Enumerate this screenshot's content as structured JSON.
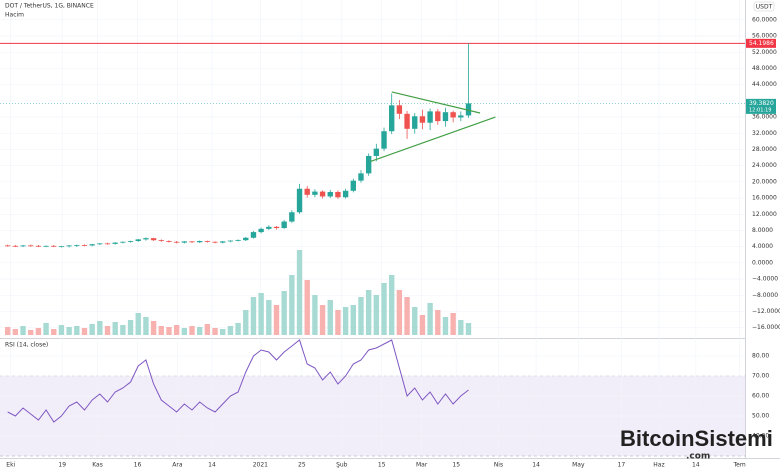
{
  "chart_data": {
    "type": "candlestick",
    "title": "DOT / TetherUS, 1G, BINANCE",
    "volume_label": "Hacim",
    "rsi_label": "RSI (14, close)",
    "currency": "USDT",
    "watermark": "BitcoinSistemi",
    "watermark_suffix": ".com",
    "up_color": "#26a69a",
    "down_color": "#ef5350",
    "vol_up_color": "#a6dad3",
    "vol_down_color": "#f7b2b0",
    "open": [
      4.3,
      4.2,
      4.1,
      4.3,
      4.2,
      4.1,
      4.2,
      4.0,
      4.1,
      4.3,
      4.4,
      4.3,
      4.6,
      4.8,
      4.7,
      5.0,
      5.2,
      5.4,
      5.8,
      6.1,
      5.6,
      5.4,
      5.2,
      5.0,
      5.3,
      5.1,
      5.4,
      5.2,
      5.0,
      5.3,
      5.5,
      5.6,
      6.2,
      7.6,
      8.4,
      8.9,
      8.6,
      10.2,
      12.5,
      18.3,
      16.8,
      17.6,
      16.4,
      17.5,
      16.2,
      17.8,
      20.3,
      22.1,
      26.4,
      28.2,
      32.5,
      38.9,
      36.8,
      33.1,
      36.2,
      34.6,
      37.4,
      35.0,
      37.2,
      35.9,
      36.4
    ],
    "high": [
      4.5,
      4.4,
      4.4,
      4.5,
      4.4,
      4.3,
      4.4,
      4.2,
      4.4,
      4.5,
      4.6,
      4.7,
      4.9,
      5.0,
      5.1,
      5.3,
      5.5,
      5.9,
      6.3,
      6.2,
      5.8,
      5.6,
      5.4,
      5.4,
      5.4,
      5.5,
      5.5,
      5.3,
      5.4,
      5.6,
      5.8,
      6.4,
      7.9,
      8.7,
      9.3,
      9.1,
      10.6,
      13.0,
      19.5,
      19.0,
      18.2,
      17.9,
      18.0,
      17.9,
      18.3,
      20.8,
      22.9,
      27.0,
      29.4,
      33.4,
      41.8,
      40.2,
      37.5,
      37.0,
      37.8,
      38.1,
      38.0,
      38.3,
      37.6,
      37.4,
      54.2
    ],
    "low": [
      4.0,
      3.9,
      3.9,
      4.0,
      3.9,
      3.9,
      3.9,
      3.8,
      3.8,
      3.9,
      4.1,
      4.1,
      4.4,
      4.5,
      4.5,
      4.8,
      5.0,
      5.2,
      5.5,
      5.4,
      5.2,
      5.0,
      4.8,
      4.8,
      4.9,
      4.9,
      5.0,
      4.8,
      4.8,
      5.1,
      5.3,
      5.4,
      6.0,
      7.3,
      8.1,
      8.2,
      8.4,
      9.9,
      12.1,
      16.1,
      16.2,
      15.9,
      16.0,
      15.8,
      15.9,
      17.4,
      19.8,
      21.5,
      25.1,
      27.6,
      31.8,
      35.5,
      30.6,
      31.9,
      33.0,
      32.8,
      34.1,
      33.6,
      34.7,
      35.0,
      35.8
    ],
    "close": [
      4.2,
      4.1,
      4.3,
      4.2,
      4.1,
      4.2,
      4.0,
      4.1,
      4.3,
      4.4,
      4.3,
      4.6,
      4.8,
      4.7,
      5.0,
      5.2,
      5.4,
      5.8,
      6.1,
      5.6,
      5.4,
      5.2,
      5.0,
      5.3,
      5.1,
      5.4,
      5.2,
      5.0,
      5.3,
      5.5,
      5.6,
      6.2,
      7.6,
      8.4,
      8.9,
      8.6,
      10.2,
      12.5,
      18.3,
      16.8,
      17.6,
      16.4,
      17.5,
      16.2,
      17.8,
      20.3,
      22.1,
      26.4,
      28.2,
      32.5,
      38.9,
      36.8,
      33.1,
      36.2,
      34.6,
      37.4,
      35.0,
      37.2,
      35.9,
      36.4,
      39.38
    ],
    "volume": [
      8,
      6,
      9,
      5,
      7,
      12,
      6,
      10,
      8,
      9,
      7,
      11,
      14,
      9,
      13,
      10,
      15,
      22,
      18,
      14,
      9,
      8,
      10,
      7,
      9,
      8,
      11,
      7,
      6,
      9,
      12,
      25,
      38,
      42,
      35,
      30,
      44,
      60,
      85,
      55,
      40,
      30,
      35,
      25,
      28,
      30,
      38,
      45,
      40,
      52,
      60,
      45,
      38,
      28,
      20,
      32,
      25,
      18,
      22,
      15,
      12
    ],
    "rsi": [
      52,
      50,
      54,
      51,
      48,
      53,
      47,
      50,
      55,
      57,
      53,
      58,
      61,
      57,
      62,
      64,
      67,
      75,
      78,
      66,
      58,
      55,
      52,
      56,
      53,
      57,
      54,
      52,
      56,
      60,
      62,
      72,
      80,
      83,
      82,
      78,
      82,
      85,
      88,
      76,
      74,
      68,
      72,
      66,
      70,
      76,
      78,
      83,
      84,
      86,
      88,
      74,
      60,
      64,
      58,
      62,
      56,
      61,
      56,
      60,
      63
    ],
    "rsi_color": "#7e57c2",
    "rsi_band": [
      30,
      70
    ],
    "xlim": [
      -1,
      96
    ],
    "xticks": [
      {
        "value": 0.4,
        "label": "Eki"
      },
      {
        "value": 7.1,
        "label": "19"
      },
      {
        "value": 11.7,
        "label": "Kas"
      },
      {
        "value": 16.9,
        "label": "16"
      },
      {
        "value": 22.1,
        "label": "Ara"
      },
      {
        "value": 26.6,
        "label": "14"
      },
      {
        "value": 32.9,
        "label": "2021"
      },
      {
        "value": 38.3,
        "label": "25"
      },
      {
        "value": 43.5,
        "label": "Şub"
      },
      {
        "value": 48.7,
        "label": "15"
      },
      {
        "value": 53.9,
        "label": "Mar"
      },
      {
        "value": 58.4,
        "label": "15"
      },
      {
        "value": 63.9,
        "label": "Nis"
      },
      {
        "value": 68.8,
        "label": "14"
      },
      {
        "value": 74.3,
        "label": "May"
      },
      {
        "value": 79.9,
        "label": "17"
      },
      {
        "value": 84.8,
        "label": "Haz"
      },
      {
        "value": 89.6,
        "label": "14"
      },
      {
        "value": 95.3,
        "label": "Tem"
      }
    ],
    "ylim": [
      -18.3,
      64.9
    ],
    "yticks": [
      {
        "value": -16,
        "label": "−16.0000"
      },
      {
        "value": -12,
        "label": "−12.0000"
      },
      {
        "value": -8,
        "label": "−8.0000"
      },
      {
        "value": -4,
        "label": "−4.0000"
      },
      {
        "value": 0,
        "label": "0.0000"
      },
      {
        "value": 4,
        "label": "4.0000"
      },
      {
        "value": 8,
        "label": "8.0000"
      },
      {
        "value": 12,
        "label": "12.0000"
      },
      {
        "value": 16,
        "label": "16.0000"
      },
      {
        "value": 20,
        "label": "20.0000"
      },
      {
        "value": 24,
        "label": "24.0000"
      },
      {
        "value": 28,
        "label": "28.0000"
      },
      {
        "value": 32,
        "label": "32.0000"
      },
      {
        "value": 36,
        "label": "36.0000"
      },
      {
        "value": 44,
        "label": "44.0000"
      },
      {
        "value": 48,
        "label": "48.0000"
      },
      {
        "value": 52,
        "label": "52.0000"
      },
      {
        "value": 56,
        "label": "56.0000"
      },
      {
        "value": 60,
        "label": "60.0000"
      }
    ],
    "rsi_ylim": [
      29,
      88
    ],
    "rsi_yticks": [
      {
        "value": 40,
        "label": "40.00"
      },
      {
        "value": 50,
        "label": "50.00"
      },
      {
        "value": 60,
        "label": "60.00"
      },
      {
        "value": 70,
        "label": "70.00"
      },
      {
        "value": 80,
        "label": "80.00"
      }
    ],
    "level": {
      "value": 54.1986,
      "label": "54.1986",
      "color": "#f23645"
    },
    "last_label": "39.3820",
    "countdown": "12:01:19",
    "trendline_color": "#43a047",
    "trendlines": [
      {
        "x": [
          50,
          61.5
        ],
        "y": [
          42.2,
          37.0
        ]
      },
      {
        "x": [
          47.2,
          63.5
        ],
        "y": [
          25.0,
          36.0
        ]
      }
    ]
  }
}
